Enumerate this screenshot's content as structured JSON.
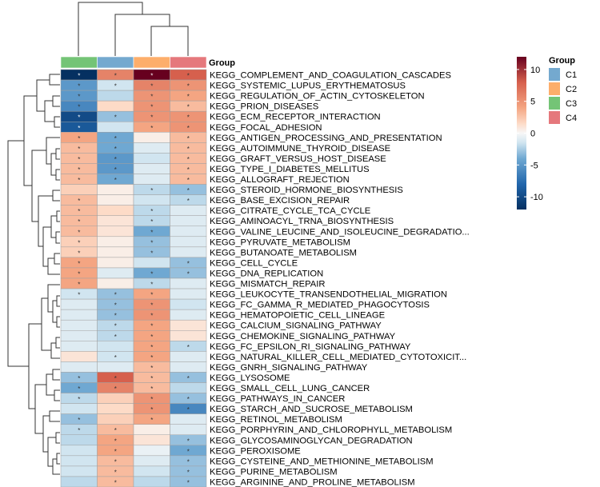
{
  "chart_data": {
    "type": "heatmap",
    "title": "",
    "columns": [
      "C3",
      "C1",
      "C2",
      "C4"
    ],
    "annotation": {
      "name": "Group",
      "legend_title": "Group",
      "legend_order": [
        "C1",
        "C2",
        "C3",
        "C4"
      ],
      "colors": {
        "C1": "#74a9cf",
        "C2": "#fdae6b",
        "C3": "#74c476",
        "C4": "#e5787c"
      }
    },
    "color_scale": {
      "min": -12,
      "max": 12,
      "ticks": [
        10,
        5,
        0,
        -5,
        -10
      ],
      "stops": [
        {
          "value": -12,
          "color": "#053061"
        },
        {
          "value": -8,
          "color": "#2166ac"
        },
        {
          "value": -4,
          "color": "#6fa8d2"
        },
        {
          "value": -1.5,
          "color": "#d1e5f0"
        },
        {
          "value": 0,
          "color": "#f7f7f7"
        },
        {
          "value": 1.5,
          "color": "#fddbc7"
        },
        {
          "value": 4,
          "color": "#f4a582"
        },
        {
          "value": 8,
          "color": "#d6604d"
        },
        {
          "value": 12,
          "color": "#67001f"
        }
      ]
    },
    "marker": "*",
    "rows": [
      {
        "label": "KEGG_COMPLEMENT_AND_COAGULATION_CASCADES",
        "values": [
          -12,
          6,
          12,
          8
        ],
        "sig": [
          1,
          1,
          1,
          1
        ]
      },
      {
        "label": "KEGG_SYSTEMIC_LUPUS_ERYTHEMATOSUS",
        "values": [
          -5,
          -1.5,
          6,
          5
        ],
        "sig": [
          1,
          1,
          1,
          1
        ]
      },
      {
        "label": "KEGG_REGULATION_OF_ACTIN_CYTOSKELETON",
        "values": [
          -5,
          -2,
          5,
          4
        ],
        "sig": [
          1,
          0,
          1,
          1
        ]
      },
      {
        "label": "KEGG_PRION_DISEASES",
        "values": [
          -6,
          1.5,
          5,
          3
        ],
        "sig": [
          1,
          0,
          1,
          1
        ]
      },
      {
        "label": "KEGG_ECM_RECEPTOR_INTERACTION",
        "values": [
          -10,
          -3,
          5,
          5
        ],
        "sig": [
          1,
          1,
          1,
          1
        ]
      },
      {
        "label": "KEGG_FOCAL_ADHESION",
        "values": [
          -9,
          -1.5,
          4,
          5
        ],
        "sig": [
          1,
          0,
          1,
          1
        ]
      },
      {
        "label": "KEGG_ANTIGEN_PROCESSING_AND_PRESENTATION",
        "values": [
          4,
          -4,
          0.5,
          3
        ],
        "sig": [
          1,
          1,
          0,
          1
        ]
      },
      {
        "label": "KEGG_AUTOIMMUNE_THYROID_DISEASE",
        "values": [
          3,
          -4,
          -1,
          3
        ],
        "sig": [
          1,
          1,
          0,
          1
        ]
      },
      {
        "label": "KEGG_GRAFT_VERSUS_HOST_DISEASE",
        "values": [
          3,
          -5,
          -1.5,
          3
        ],
        "sig": [
          1,
          1,
          0,
          1
        ]
      },
      {
        "label": "KEGG_TYPE_I_DIABETES_MELLITUS",
        "values": [
          3,
          -5,
          -1,
          3
        ],
        "sig": [
          1,
          1,
          0,
          1
        ]
      },
      {
        "label": "KEGG_ALLOGRAFT_REJECTION",
        "values": [
          3,
          -4,
          -1,
          3
        ],
        "sig": [
          1,
          1,
          0,
          1
        ]
      },
      {
        "label": "KEGG_STEROID_HORMONE_BIOSYNTHESIS",
        "values": [
          2,
          0.5,
          -2,
          -3
        ],
        "sig": [
          0,
          0,
          1,
          1
        ]
      },
      {
        "label": "KEGG_BASE_EXCISION_REPAIR",
        "values": [
          3,
          0.5,
          -1.5,
          -2
        ],
        "sig": [
          1,
          0,
          0,
          1
        ]
      },
      {
        "label": "KEGG_CITRATE_CYCLE_TCA_CYCLE",
        "values": [
          3,
          1.5,
          -2,
          -1
        ],
        "sig": [
          1,
          0,
          1,
          0
        ]
      },
      {
        "label": "KEGG_AMINOACYL_TRNA_BIOSYNTHESIS",
        "values": [
          3,
          1,
          -2,
          -1
        ],
        "sig": [
          1,
          0,
          1,
          0
        ]
      },
      {
        "label": "KEGG_VALINE_LEUCINE_AND_ISOLEUCINE_DEGRADATIO...",
        "values": [
          3,
          1,
          -4,
          -1
        ],
        "sig": [
          1,
          0,
          1,
          0
        ]
      },
      {
        "label": "KEGG_PYRUVATE_METABOLISM",
        "values": [
          2,
          0.5,
          -3,
          -1
        ],
        "sig": [
          1,
          0,
          1,
          0
        ]
      },
      {
        "label": "KEGG_BUTANOATE_METABOLISM",
        "values": [
          2,
          0.5,
          -3,
          -1
        ],
        "sig": [
          1,
          0,
          1,
          0
        ]
      },
      {
        "label": "KEGG_CELL_CYCLE",
        "values": [
          4,
          0.5,
          -1.5,
          -3
        ],
        "sig": [
          1,
          0,
          0,
          1
        ]
      },
      {
        "label": "KEGG_DNA_REPLICATION",
        "values": [
          4,
          -1,
          -4,
          -3
        ],
        "sig": [
          1,
          0,
          1,
          1
        ]
      },
      {
        "label": "KEGG_MISMATCH_REPAIR",
        "values": [
          4,
          0.5,
          -2,
          -1
        ],
        "sig": [
          1,
          0,
          1,
          0
        ]
      },
      {
        "label": "KEGG_LEUKOCYTE_TRANSENDOTHELIAL_MIGRATION",
        "values": [
          -1.5,
          -3,
          4,
          -1
        ],
        "sig": [
          1,
          1,
          1,
          0
        ]
      },
      {
        "label": "KEGG_FC_GAMMA_R_MEDIATED_PHAGOCYTOSIS",
        "values": [
          -1,
          -3,
          5,
          -1.5
        ],
        "sig": [
          0,
          1,
          1,
          0
        ]
      },
      {
        "label": "KEGG_HEMATOPOIETIC_CELL_LINEAGE",
        "values": [
          -1,
          -3,
          5,
          -1
        ],
        "sig": [
          0,
          1,
          1,
          0
        ]
      },
      {
        "label": "KEGG_CALCIUM_SIGNALING_PATHWAY",
        "values": [
          -1,
          -2,
          4,
          1
        ],
        "sig": [
          0,
          1,
          1,
          0
        ]
      },
      {
        "label": "KEGG_CHEMOKINE_SIGNALING_PATHWAY",
        "values": [
          -1,
          -2,
          4,
          1
        ],
        "sig": [
          0,
          1,
          1,
          0
        ]
      },
      {
        "label": "KEGG_FC_EPSILON_RI_SIGNALING_PATHWAY",
        "values": [
          -1,
          -1.5,
          4,
          -2
        ],
        "sig": [
          0,
          0,
          1,
          1
        ]
      },
      {
        "label": "KEGG_NATURAL_KILLER_CELL_MEDIATED_CYTOTOXICIT...",
        "values": [
          1,
          -1.5,
          4,
          -1
        ],
        "sig": [
          0,
          1,
          1,
          0
        ]
      },
      {
        "label": "KEGG_GNRH_SIGNALING_PATHWAY",
        "values": [
          -1,
          -1,
          3,
          -1
        ],
        "sig": [
          0,
          0,
          1,
          0
        ]
      },
      {
        "label": "KEGG_LYSOSOME",
        "values": [
          -3,
          8,
          3,
          -3
        ],
        "sig": [
          1,
          1,
          1,
          1
        ]
      },
      {
        "label": "KEGG_SMALL_CELL_LUNG_CANCER",
        "values": [
          -4,
          6,
          3,
          -2
        ],
        "sig": [
          1,
          1,
          1,
          0
        ]
      },
      {
        "label": "KEGG_PATHWAYS_IN_CANCER",
        "values": [
          -2,
          2,
          5,
          -3
        ],
        "sig": [
          1,
          0,
          1,
          1
        ]
      },
      {
        "label": "KEGG_STARCH_AND_SUCROSE_METABOLISM",
        "values": [
          -1.5,
          1.5,
          5,
          -6
        ],
        "sig": [
          0,
          0,
          1,
          1
        ]
      },
      {
        "label": "KEGG_RETINOL_METABOLISM",
        "values": [
          -3,
          2,
          4,
          -1
        ],
        "sig": [
          1,
          0,
          1,
          0
        ]
      },
      {
        "label": "KEGG_PORPHYRIN_AND_CHLOROPHYLL_METABOLISM",
        "values": [
          -2,
          3,
          0.5,
          -1
        ],
        "sig": [
          1,
          1,
          0,
          0
        ]
      },
      {
        "label": "KEGG_GLYCOSAMINOGLYCAN_DEGRADATION",
        "values": [
          -2,
          4,
          1,
          -3
        ],
        "sig": [
          0,
          1,
          0,
          1
        ]
      },
      {
        "label": "KEGG_PEROXISOME",
        "values": [
          -1.5,
          4,
          -0.5,
          -4
        ],
        "sig": [
          0,
          1,
          0,
          1
        ]
      },
      {
        "label": "KEGG_CYSTEINE_AND_METHIONINE_METABOLISM",
        "values": [
          -1.5,
          3,
          -1,
          -3
        ],
        "sig": [
          0,
          1,
          0,
          1
        ]
      },
      {
        "label": "KEGG_PURINE_METABOLISM",
        "values": [
          -1.5,
          3,
          -1.5,
          -3
        ],
        "sig": [
          0,
          1,
          0,
          1
        ]
      },
      {
        "label": "KEGG_ARGININE_AND_PROLINE_METABOLISM",
        "values": [
          -2,
          3,
          -2,
          -3
        ],
        "sig": [
          0,
          1,
          0,
          1
        ]
      }
    ]
  }
}
